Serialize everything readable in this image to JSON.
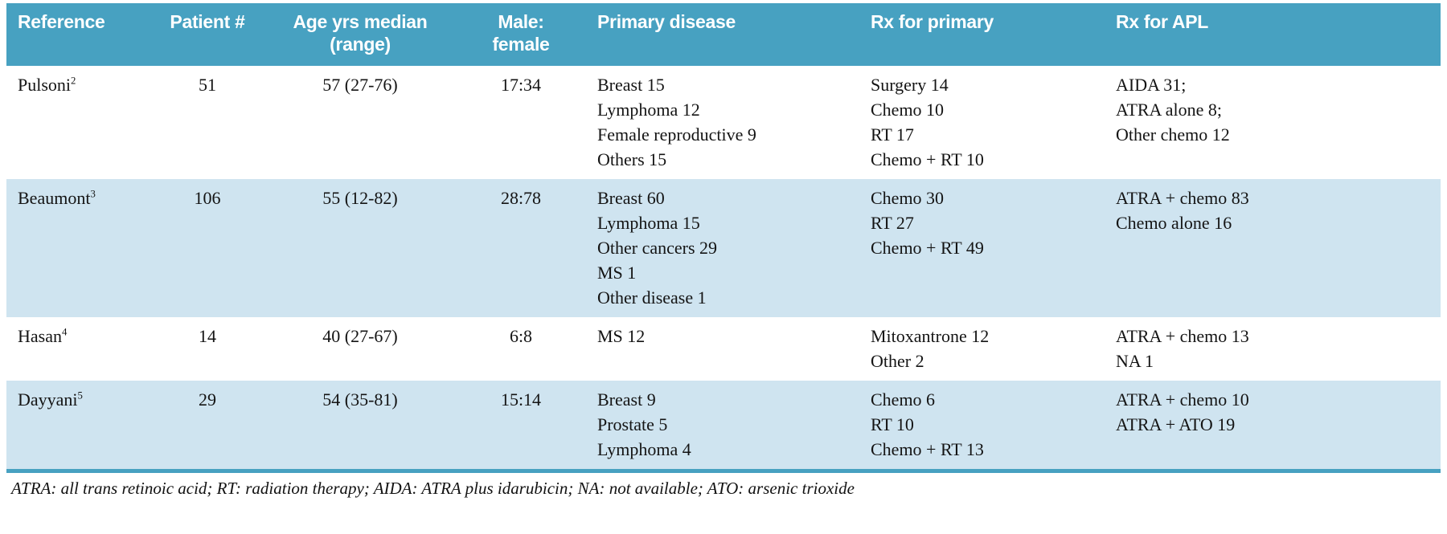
{
  "colors": {
    "header_bg": "#47a1c1",
    "header_text": "#ffffff",
    "row_alt_bg": "#cfe4f0",
    "border": "#47a1c1",
    "text": "#141414"
  },
  "table": {
    "headers": {
      "reference": "Reference",
      "patients": "Patient #",
      "age_line1": "Age yrs median",
      "age_line2": "(range)",
      "mf_line1": "Male:",
      "mf_line2": "female",
      "primary_disease": "Primary disease",
      "rx_primary": "Rx for primary",
      "rx_apl": "Rx for APL"
    },
    "rows": [
      {
        "reference": "Pulsoni",
        "ref_sup": "2",
        "patients": "51",
        "age": "57 (27-76)",
        "male_female": "17:34",
        "primary_disease": [
          "Breast 15",
          "Lymphoma 12",
          "Female reproductive 9",
          "Others 15"
        ],
        "rx_primary": [
          "Surgery 14",
          "Chemo 10",
          "RT 17",
          "Chemo + RT 10"
        ],
        "rx_apl": [
          "AIDA 31;",
          "ATRA alone 8;",
          "Other chemo 12"
        ]
      },
      {
        "reference": "Beaumont",
        "ref_sup": "3",
        "patients": "106",
        "age": "55 (12-82)",
        "male_female": "28:78",
        "primary_disease": [
          "Breast 60",
          "Lymphoma 15",
          "Other cancers 29",
          "MS 1",
          "Other disease 1"
        ],
        "rx_primary": [
          "Chemo 30",
          "RT 27",
          "Chemo + RT 49"
        ],
        "rx_apl": [
          "ATRA + chemo 83",
          "Chemo alone 16"
        ]
      },
      {
        "reference": "Hasan",
        "ref_sup": "4",
        "patients": "14",
        "age": "40 (27-67)",
        "male_female": "6:8",
        "primary_disease": [
          "MS 12"
        ],
        "rx_primary": [
          "Mitoxantrone 12",
          "Other 2"
        ],
        "rx_apl": [
          "ATRA + chemo 13",
          "NA 1"
        ]
      },
      {
        "reference": "Dayyani",
        "ref_sup": "5",
        "patients": "29",
        "age": "54 (35-81)",
        "male_female": "15:14",
        "primary_disease": [
          "Breast 9",
          "Prostate 5",
          "Lymphoma 4"
        ],
        "rx_primary": [
          "Chemo 6",
          "RT 10",
          "Chemo + RT 13"
        ],
        "rx_apl": [
          "ATRA + chemo 10",
          "ATRA + ATO 19"
        ]
      }
    ]
  },
  "page": {
    "footnote": "ATRA: all trans retinoic acid; RT: radiation therapy; AIDA: ATRA plus idarubicin; NA: not available; ATO: arsenic trioxide"
  }
}
